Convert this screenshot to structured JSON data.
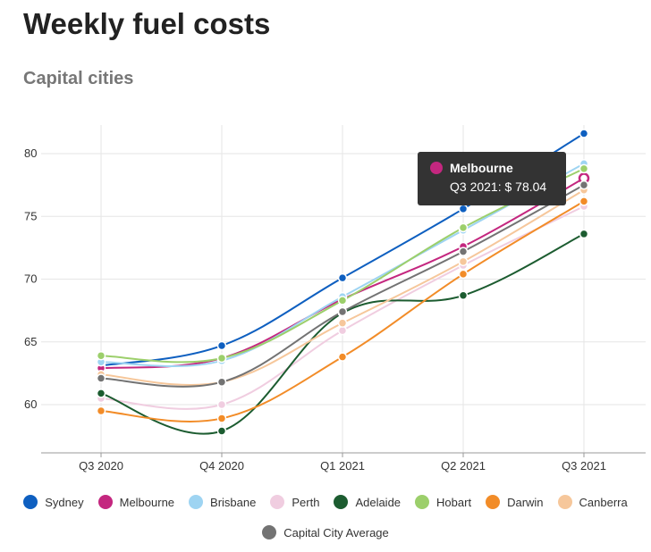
{
  "page": {
    "title": "Weekly fuel costs",
    "subtitle": "Capital cities"
  },
  "tooltip": {
    "series": "Melbourne",
    "category": "Q3 2021",
    "separator": ": ",
    "value_text": "$ 78.04",
    "color": "#c4277f"
  },
  "chart_data": {
    "type": "line",
    "title": "Weekly fuel costs",
    "subtitle": "Capital cities",
    "categories": [
      "Q3 2020",
      "Q4 2020",
      "Q1 2021",
      "Q2 2021",
      "Q3 2021"
    ],
    "ylim": [
      55,
      85
    ],
    "yticks": [
      60,
      65,
      70,
      75,
      80
    ],
    "grid": true,
    "legend_position": "bottom",
    "series": [
      {
        "name": "Sydney",
        "color": "#0e5fc0",
        "values": [
          63.1,
          64.7,
          70.1,
          75.6,
          81.6
        ]
      },
      {
        "name": "Melbourne",
        "color": "#c4277f",
        "values": [
          62.9,
          63.7,
          68.4,
          72.6,
          78.04
        ]
      },
      {
        "name": "Brisbane",
        "color": "#9ed4f2",
        "values": [
          63.4,
          63.5,
          68.6,
          73.9,
          79.2
        ]
      },
      {
        "name": "Perth",
        "color": "#f0cde0",
        "values": [
          60.5,
          60.0,
          65.9,
          71.1,
          75.8
        ]
      },
      {
        "name": "Adelaide",
        "color": "#1c5c30",
        "values": [
          60.9,
          57.9,
          67.3,
          68.7,
          73.6
        ]
      },
      {
        "name": "Hobart",
        "color": "#9ccf6b",
        "values": [
          63.9,
          63.7,
          68.3,
          74.1,
          78.8
        ]
      },
      {
        "name": "Darwin",
        "color": "#f28c28",
        "values": [
          59.5,
          58.9,
          63.8,
          70.4,
          76.2
        ]
      },
      {
        "name": "Canberra",
        "color": "#f6c79b",
        "values": [
          62.4,
          61.8,
          66.5,
          71.4,
          77.1
        ]
      },
      {
        "name": "Capital City Average",
        "color": "#737373",
        "values": [
          62.1,
          61.8,
          67.4,
          72.2,
          77.5
        ]
      }
    ]
  }
}
